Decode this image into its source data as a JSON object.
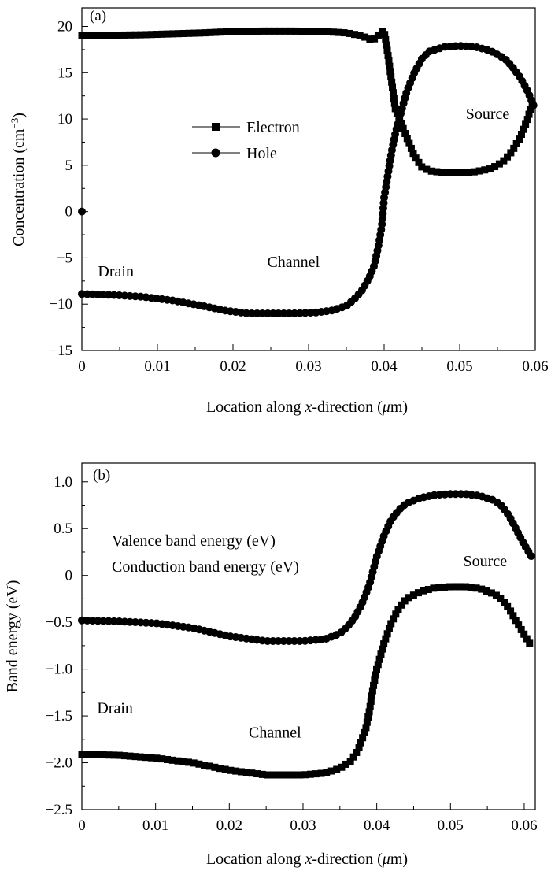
{
  "chart_data": [
    {
      "type": "line",
      "panel_label": "(a)",
      "xlabel_prefix": "Location along ",
      "xlabel_var": "x",
      "xlabel_suffix": "-direction (",
      "xlabel_unit_greek": "μ",
      "xlabel_unit_rest": "m)",
      "ylabel_main": "Concentration (cm",
      "ylabel_sup": "−3",
      "ylabel_close": ")",
      "xlim": [
        0,
        0.06
      ],
      "ylim": [
        -15,
        22
      ],
      "xticks": [
        0,
        0.01,
        0.02,
        0.03,
        0.04,
        0.05,
        0.06
      ],
      "xtick_labels": [
        "0",
        "0.01",
        "0.02",
        "0.03",
        "0.04",
        "0.05",
        "0.06"
      ],
      "yticks": [
        -15,
        -10,
        -5,
        0,
        5,
        10,
        15,
        20
      ],
      "ytick_labels": [
        "−15",
        "−10",
        "−5",
        "0",
        "5",
        "10",
        "15",
        "20"
      ],
      "legend": [
        {
          "label": "Electron",
          "marker": "square"
        },
        {
          "label": "Hole",
          "marker": "circle"
        }
      ],
      "annotations": [
        {
          "text": "Drain",
          "x": 0.0045,
          "y": -7.0
        },
        {
          "text": "Channel",
          "x": 0.028,
          "y": -6.0
        },
        {
          "text": "Source",
          "x": 0.0537,
          "y": 10.0
        }
      ],
      "series": [
        {
          "name": "Electron",
          "marker": "square",
          "points": [
            [
              0,
              19.0
            ],
            [
              0.004,
              19.05
            ],
            [
              0.008,
              19.1
            ],
            [
              0.012,
              19.2
            ],
            [
              0.016,
              19.3
            ],
            [
              0.02,
              19.45
            ],
            [
              0.024,
              19.5
            ],
            [
              0.028,
              19.5
            ],
            [
              0.032,
              19.45
            ],
            [
              0.035,
              19.3
            ],
            [
              0.037,
              19.0
            ],
            [
              0.0385,
              18.5
            ],
            [
              0.0395,
              19.3
            ],
            [
              0.04,
              19.5
            ],
            [
              0.0405,
              17.0
            ],
            [
              0.041,
              14.0
            ],
            [
              0.0415,
              11.0
            ],
            [
              0.042,
              10.0
            ],
            [
              0.0425,
              9.0
            ],
            [
              0.043,
              8.0
            ],
            [
              0.044,
              6.0
            ],
            [
              0.045,
              4.8
            ],
            [
              0.046,
              4.4
            ],
            [
              0.048,
              4.2
            ],
            [
              0.05,
              4.2
            ],
            [
              0.052,
              4.3
            ],
            [
              0.054,
              4.6
            ],
            [
              0.055,
              5.0
            ],
            [
              0.056,
              5.6
            ],
            [
              0.057,
              6.6
            ],
            [
              0.058,
              8.0
            ],
            [
              0.059,
              10.0
            ],
            [
              0.0595,
              11.5
            ],
            [
              0.06,
              12.0
            ]
          ]
        },
        {
          "name": "Hole",
          "marker": "circle",
          "points": [
            [
              0,
              0
            ],
            [
              0,
              -8.9
            ],
            [
              0.004,
              -9.0
            ],
            [
              0.008,
              -9.2
            ],
            [
              0.012,
              -9.6
            ],
            [
              0.016,
              -10.2
            ],
            [
              0.019,
              -10.7
            ],
            [
              0.022,
              -11.0
            ],
            [
              0.025,
              -11.0
            ],
            [
              0.028,
              -11.0
            ],
            [
              0.031,
              -10.9
            ],
            [
              0.033,
              -10.7
            ],
            [
              0.035,
              -10.2
            ],
            [
              0.036,
              -9.5
            ],
            [
              0.037,
              -8.6
            ],
            [
              0.038,
              -7.2
            ],
            [
              0.0387,
              -5.8
            ],
            [
              0.0393,
              -3.5
            ],
            [
              0.0397,
              -1.5
            ],
            [
              0.04,
              1.5
            ],
            [
              0.0405,
              4.0
            ],
            [
              0.041,
              6.5
            ],
            [
              0.0415,
              8.5
            ],
            [
              0.042,
              10.0
            ],
            [
              0.0425,
              11.5
            ],
            [
              0.043,
              13.0
            ],
            [
              0.044,
              15.0
            ],
            [
              0.045,
              16.5
            ],
            [
              0.046,
              17.3
            ],
            [
              0.048,
              17.8
            ],
            [
              0.05,
              17.9
            ],
            [
              0.052,
              17.8
            ],
            [
              0.054,
              17.4
            ],
            [
              0.056,
              16.5
            ],
            [
              0.057,
              15.6
            ],
            [
              0.058,
              14.5
            ],
            [
              0.059,
              13.0
            ],
            [
              0.0595,
              12.0
            ],
            [
              0.06,
              11.0
            ]
          ]
        }
      ]
    },
    {
      "type": "line",
      "panel_label": "(b)",
      "xlabel_prefix": "Location along ",
      "xlabel_var": "x",
      "xlabel_suffix": "-direction (",
      "xlabel_unit_greek": "μ",
      "xlabel_unit_rest": "m)",
      "ylabel": "Band energy (eV)",
      "xlim": [
        0,
        0.0615
      ],
      "ylim": [
        -2.5,
        1.2
      ],
      "xticks": [
        0,
        0.01,
        0.02,
        0.03,
        0.04,
        0.05,
        0.06
      ],
      "xtick_labels": [
        "0",
        "0.01",
        "0.02",
        "0.03",
        "0.04",
        "0.05",
        "0.06"
      ],
      "yticks": [
        -2.5,
        -2.0,
        -1.5,
        -1.0,
        -0.5,
        0,
        0.5,
        1.0
      ],
      "ytick_labels": [
        "−2.5",
        "−2.0",
        "−1.5",
        "−1.0",
        "−0.5",
        "0",
        "0.5",
        "1.0"
      ],
      "legend": [
        {
          "label": "Valence band energy (eV)"
        },
        {
          "label": "Conduction band energy (eV)"
        }
      ],
      "annotations": [
        {
          "text": "Drain",
          "x": 0.0045,
          "y": -1.47
        },
        {
          "text": "Channel",
          "x": 0.0262,
          "y": -1.73
        },
        {
          "text": "Source",
          "x": 0.0547,
          "y": 0.1
        }
      ],
      "series": [
        {
          "name": "",
          "marker": "circle",
          "points": [
            [
              0,
              -0.48
            ],
            [
              0.005,
              -0.49
            ],
            [
              0.01,
              -0.51
            ],
            [
              0.015,
              -0.56
            ],
            [
              0.02,
              -0.65
            ],
            [
              0.025,
              -0.7
            ],
            [
              0.03,
              -0.7
            ],
            [
              0.033,
              -0.68
            ],
            [
              0.035,
              -0.62
            ],
            [
              0.036,
              -0.55
            ],
            [
              0.037,
              -0.45
            ],
            [
              0.038,
              -0.3
            ],
            [
              0.039,
              -0.1
            ],
            [
              0.0395,
              0.05
            ],
            [
              0.04,
              0.2
            ],
            [
              0.041,
              0.43
            ],
            [
              0.042,
              0.6
            ],
            [
              0.043,
              0.7
            ],
            [
              0.044,
              0.77
            ],
            [
              0.046,
              0.83
            ],
            [
              0.048,
              0.86
            ],
            [
              0.05,
              0.87
            ],
            [
              0.052,
              0.87
            ],
            [
              0.054,
              0.85
            ],
            [
              0.056,
              0.8
            ],
            [
              0.057,
              0.74
            ],
            [
              0.058,
              0.63
            ],
            [
              0.059,
              0.48
            ],
            [
              0.06,
              0.33
            ],
            [
              0.061,
              0.2
            ]
          ]
        },
        {
          "name": "",
          "marker": "square",
          "points": [
            [
              0,
              -1.91
            ],
            [
              0.005,
              -1.92
            ],
            [
              0.01,
              -1.95
            ],
            [
              0.015,
              -2.0
            ],
            [
              0.02,
              -2.08
            ],
            [
              0.025,
              -2.13
            ],
            [
              0.03,
              -2.13
            ],
            [
              0.033,
              -2.11
            ],
            [
              0.035,
              -2.06
            ],
            [
              0.0365,
              -1.98
            ],
            [
              0.0375,
              -1.86
            ],
            [
              0.0385,
              -1.64
            ],
            [
              0.039,
              -1.45
            ],
            [
              0.0395,
              -1.2
            ],
            [
              0.04,
              -1.0
            ],
            [
              0.041,
              -0.72
            ],
            [
              0.042,
              -0.5
            ],
            [
              0.043,
              -0.35
            ],
            [
              0.044,
              -0.25
            ],
            [
              0.046,
              -0.17
            ],
            [
              0.048,
              -0.13
            ],
            [
              0.05,
              -0.12
            ],
            [
              0.052,
              -0.12
            ],
            [
              0.054,
              -0.14
            ],
            [
              0.056,
              -0.2
            ],
            [
              0.057,
              -0.26
            ],
            [
              0.058,
              -0.36
            ],
            [
              0.059,
              -0.5
            ],
            [
              0.06,
              -0.63
            ],
            [
              0.061,
              -0.76
            ]
          ]
        }
      ]
    }
  ]
}
